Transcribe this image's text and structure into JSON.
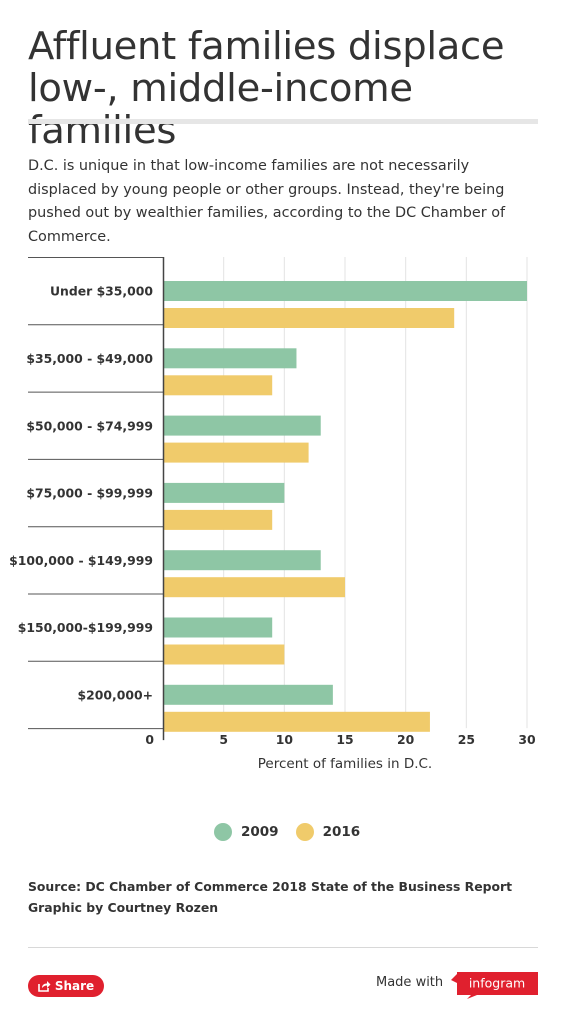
{
  "title": "Affluent families displace low-, middle-income families",
  "description": "D.C. is unique in that low-income families are not necessarily displaced by young people or other groups. Instead, they're being pushed out by wealthier families, according to the DC Chamber of Commerce.",
  "chart_data": {
    "type": "bar",
    "orientation": "horizontal",
    "categories": [
      "Under $35,000",
      "$35,000 - $49,000",
      "$50,000 - $74,999",
      "$75,000 - $99,999",
      "$100,000 - $149,999",
      "$150,000-$199,999",
      "$200,000+"
    ],
    "series": [
      {
        "name": "2009",
        "color": "#8ec6a5",
        "values": [
          30,
          11,
          13,
          10,
          13,
          9,
          14
        ]
      },
      {
        "name": "2016",
        "color": "#f0cb6b",
        "values": [
          24,
          9,
          12,
          9,
          15,
          10,
          22
        ]
      }
    ],
    "xlabel": "Percent of families in D.C.",
    "xticks": [
      0,
      5,
      10,
      15,
      20,
      25,
      30
    ],
    "xlim": [
      0,
      30
    ],
    "grid": true,
    "legend": "bottom"
  },
  "legend": {
    "items": [
      {
        "label": "2009",
        "color": "#8ec6a5"
      },
      {
        "label": "2016",
        "color": "#f0cb6b"
      }
    ]
  },
  "source_line": "Source: DC Chamber of Commerce 2018 State of the Business Report",
  "credit_line": "Graphic by Courtney Rozen",
  "footer": {
    "share_label": "Share",
    "made_with": "Made with",
    "brand": "infogram",
    "share_color": "#e0202e"
  }
}
